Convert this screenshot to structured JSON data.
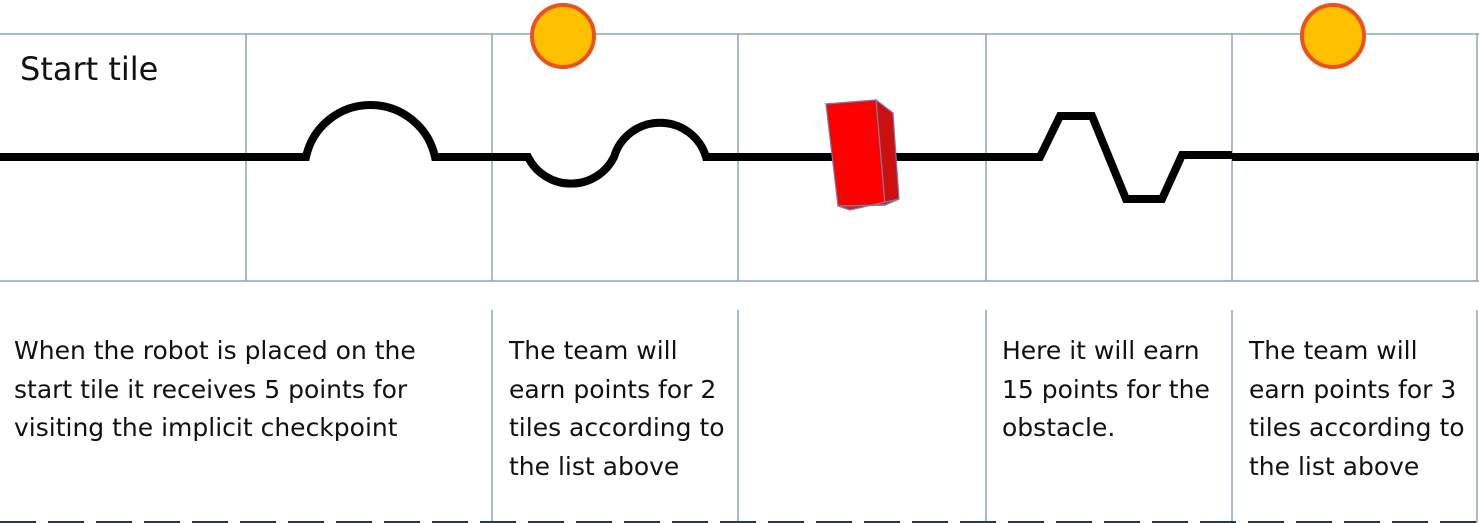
{
  "start_tile_label": "Start tile",
  "descriptions": {
    "tile1": "When the robot is placed on the start tile it receives 5 points for visiting the implicit checkpoint",
    "tile3": "The team will earn points for 2 tiles according to the list above",
    "tile5": "Here it will earn 15 points for the obstacle.",
    "tile6": "The team will earn points for 3 tiles according to the list above"
  },
  "colors": {
    "grid_line": "#8aa6b4",
    "track": "#000000",
    "checkpoint_fill": "#ffc000",
    "checkpoint_stroke": "#e8531f",
    "obstacle_front": "#ff0000",
    "obstacle_side": "#cc1010",
    "obstacle_top": "#ff3535"
  }
}
